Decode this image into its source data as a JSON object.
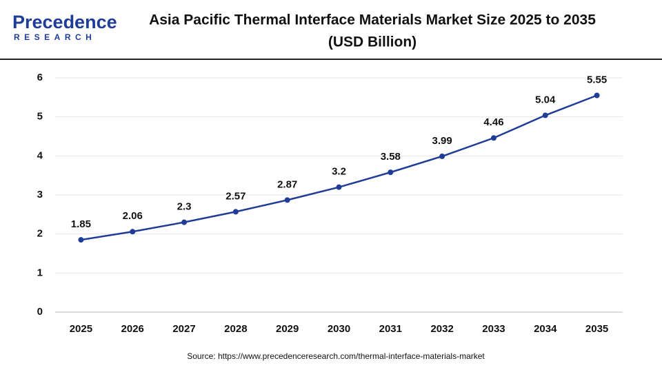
{
  "brand": {
    "name": "Precedence",
    "tagline": "RESEARCH"
  },
  "chart_data": {
    "type": "line",
    "title": "Asia Pacific Thermal Interface Materials Market Size 2025 to 2035",
    "subtitle": "(USD Billion)",
    "categories": [
      "2025",
      "2026",
      "2027",
      "2028",
      "2029",
      "2030",
      "2031",
      "2032",
      "2033",
      "2034",
      "2035"
    ],
    "values": [
      1.85,
      2.06,
      2.3,
      2.57,
      2.87,
      3.2,
      3.58,
      3.99,
      4.46,
      5.04,
      5.55
    ],
    "color": "#1f3c96",
    "ylim": [
      0,
      6
    ],
    "yticks": [
      0,
      1,
      2,
      3,
      4,
      5,
      6
    ],
    "grid": true,
    "source": "Source: https://www.precedenceresearch.com/thermal-interface-materials-market"
  }
}
